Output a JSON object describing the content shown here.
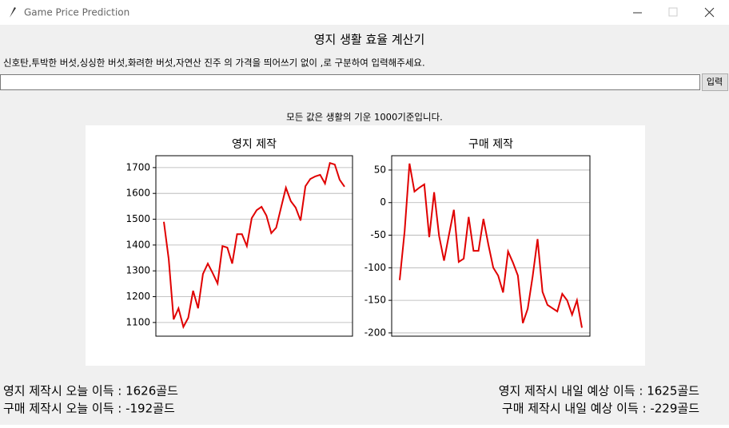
{
  "window": {
    "title": "Game Price Prediction"
  },
  "header": {
    "title": "영지 생활 효율 계산기",
    "instruction": "신호탄,투박한 버섯,싱싱한 버섯,화려한 버섯,자연산 진주 의 가격을 띄어쓰기 없이 ,로 구분하여 입력해주세요."
  },
  "input": {
    "button": "입력"
  },
  "note": "모든 값은 생활의 기운 1000기준입니다.",
  "chart_data": [
    {
      "type": "line",
      "title": "영지 제작",
      "color": "#e00000",
      "grid": true,
      "ylim": [
        1047,
        1746
      ],
      "yticks": [
        1100,
        1200,
        1300,
        1400,
        1500,
        1600,
        1700
      ],
      "values": [
        1490,
        1345,
        1112,
        1155,
        1083,
        1118,
        1223,
        1155,
        1288,
        1328,
        1291,
        1251,
        1396,
        1390,
        1328,
        1442,
        1442,
        1396,
        1504,
        1535,
        1548,
        1514,
        1446,
        1467,
        1545,
        1622,
        1570,
        1545,
        1495,
        1628,
        1656,
        1666,
        1672,
        1638,
        1718,
        1712,
        1653,
        1626
      ]
    },
    {
      "type": "line",
      "title": "구매 제작",
      "color": "#e00000",
      "grid": true,
      "ylim": [
        -205,
        72
      ],
      "yticks": [
        -200,
        -150,
        -100,
        -50,
        0,
        50
      ],
      "values": [
        -119,
        -44,
        60,
        17,
        23,
        28,
        -53,
        16,
        -51,
        -89,
        -50,
        -11,
        -91,
        -86,
        -22,
        -74,
        -74,
        -25,
        -64,
        -100,
        -112,
        -138,
        -75,
        -92,
        -112,
        -185,
        -163,
        -113,
        -56,
        -137,
        -157,
        -162,
        -167,
        -140,
        -150,
        -172,
        -150,
        -192
      ]
    }
  ],
  "results": {
    "left": [
      "영지 제작시 오늘 이득 : 1626골드",
      "구매 제작시 오늘 이득 : -192골드"
    ],
    "right": [
      "영지 제작시 내일 예상 이득 : 1625골드",
      "구매 제작시 내일 예상 이득 : -229골드"
    ]
  }
}
